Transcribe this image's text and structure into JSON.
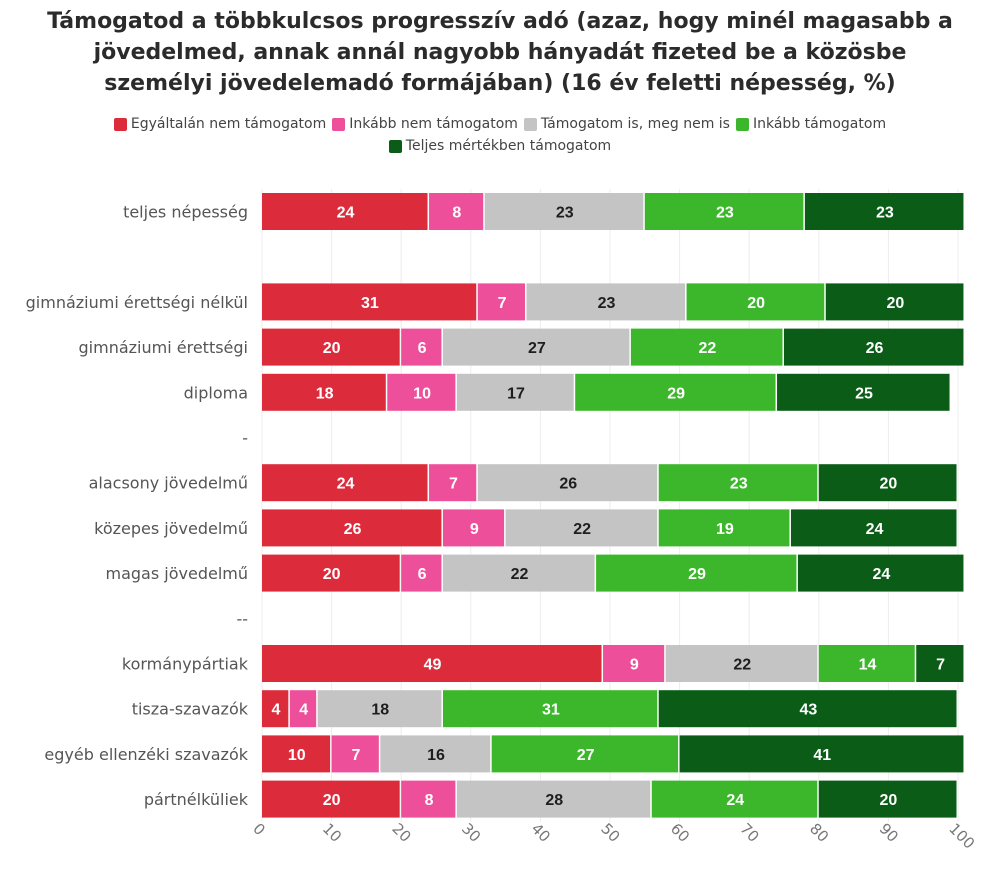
{
  "chart_data": {
    "type": "bar",
    "orientation": "horizontal",
    "stacked": true,
    "title": "Támogatod a többkulcsos progresszív adó (azaz, hogy minél magasabb a jövedelmed, annak annál nagyobb hányadát fizeted be a közösbe személyi jövedelemadó formájában) (16 év feletti népesség, %)",
    "xlabel": "",
    "ylabel": "",
    "xlim": [
      0,
      100
    ],
    "xticks": [
      "0",
      "10",
      "20",
      "30",
      "40",
      "50",
      "60",
      "70",
      "80",
      "90",
      "100"
    ],
    "categories": [
      "teljes népesség",
      "",
      "gimnáziumi érettségi nélkül",
      "gimnáziumi érettségi",
      "diploma",
      "-",
      "alacsony jövedelmű",
      "közepes jövedelmű",
      "magas jövedelmű",
      "--",
      "kormánypártiak",
      "tisza-szavazók",
      "egyéb ellenzéki szavazók",
      "pártnélküliek"
    ],
    "series": [
      {
        "name": "Egyáltalán nem támogatom",
        "color": "#dc2c3c",
        "label_color": "#ffffff",
        "values": [
          24,
          null,
          31,
          20,
          18,
          null,
          24,
          26,
          20,
          null,
          49,
          4,
          10,
          20
        ]
      },
      {
        "name": "Inkább nem támogatom",
        "color": "#ee4f9a",
        "label_color": "#ffffff",
        "values": [
          8,
          null,
          7,
          6,
          10,
          null,
          7,
          9,
          6,
          null,
          9,
          4,
          7,
          8
        ]
      },
      {
        "name": "Támogatom is, meg nem is",
        "color": "#c4c4c4",
        "label_color": "#1e1e1e",
        "values": [
          23,
          null,
          23,
          27,
          17,
          null,
          26,
          22,
          22,
          null,
          22,
          18,
          16,
          28
        ]
      },
      {
        "name": "Inkább támogatom",
        "color": "#3cb72c",
        "label_color": "#ffffff",
        "values": [
          23,
          null,
          20,
          22,
          29,
          null,
          23,
          19,
          29,
          null,
          14,
          31,
          27,
          24
        ]
      },
      {
        "name": "Teljes mértékben támogatom",
        "color": "#0b5c17",
        "label_color": "#ffffff",
        "values": [
          23,
          null,
          20,
          26,
          25,
          null,
          20,
          24,
          24,
          null,
          7,
          43,
          41,
          20
        ]
      }
    ],
    "legend_position": "top",
    "grid": false
  }
}
